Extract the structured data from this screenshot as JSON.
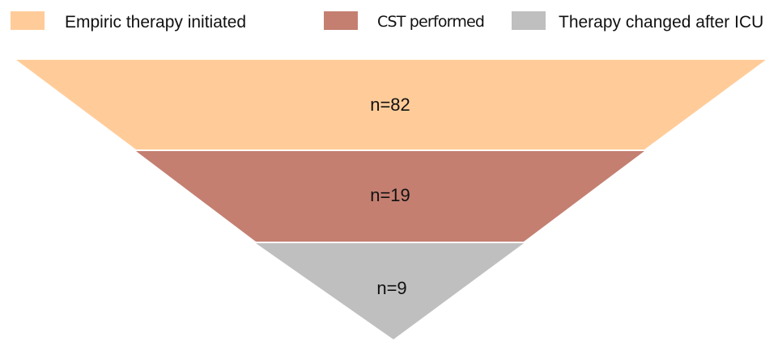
{
  "legend": [
    {
      "label": "Empiric therapy initiated",
      "color": "#FFCC99"
    },
    {
      "label": "CST performed",
      "color": "#C47F71"
    },
    {
      "label": "Therapy changed after ICU",
      "color": "#BFBFBF"
    }
  ],
  "tiers": [
    {
      "label": "n=82",
      "color": "#FFCC99"
    },
    {
      "label": "n=19",
      "color": "#C47F71"
    },
    {
      "label": "n=9",
      "color": "#BFBFBF"
    }
  ]
}
